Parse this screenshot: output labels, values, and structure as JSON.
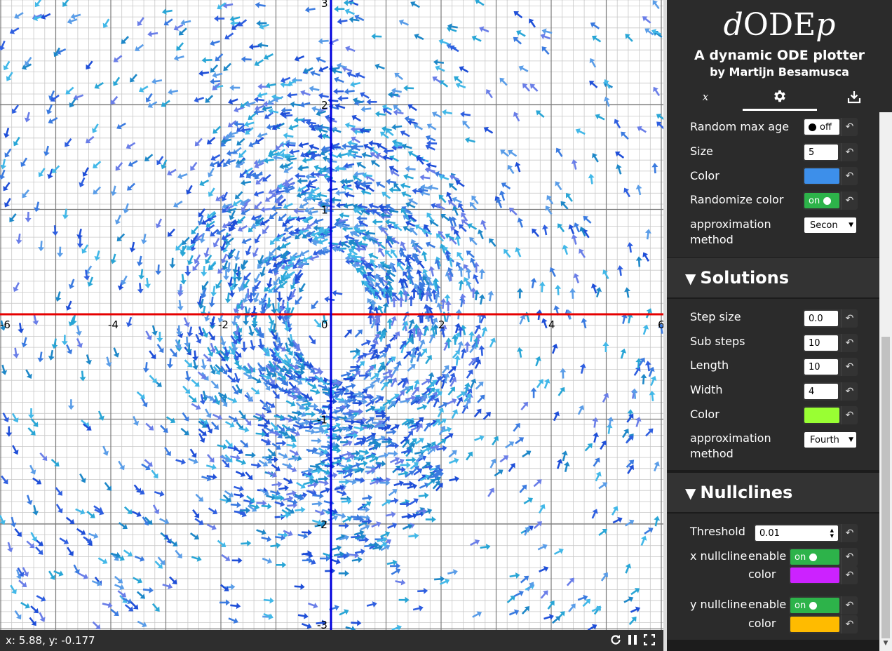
{
  "plot": {
    "x_ticks": [
      "-6",
      "-4",
      "-2",
      "0",
      "2",
      "4",
      "6"
    ],
    "y_ticks": [
      "3",
      "2",
      "1",
      "-1",
      "-2",
      "-3"
    ],
    "x_range": [
      -6,
      6
    ],
    "y_range": [
      -3,
      3
    ],
    "colors": {
      "x_axis": "#e60000",
      "y_axis": "#0000dd",
      "major_grid": "#7a7a7a",
      "minor_grid": "#c8c8c8"
    },
    "particle_colors": [
      "#1f4fd8",
      "#3b7be0",
      "#29a6d6",
      "#6a7ee8",
      "#42b8e8",
      "#2f5fe0",
      "#5a9de8",
      "#1e88c8"
    ]
  },
  "status": {
    "coords": "x: 5.88, y: -0.177",
    "icons": [
      "refresh-icon",
      "pause-icon",
      "fullscreen-icon"
    ]
  },
  "header": {
    "logo_d": "d",
    "logo_ode": "ODE",
    "logo_p": "p",
    "subtitle": "A dynamic ODE plotter",
    "author": "by Martijn Besamusca",
    "tabs": [
      {
        "icon": "function-icon",
        "glyph": "𝑥"
      },
      {
        "icon": "gear-icon"
      },
      {
        "icon": "download-icon"
      }
    ]
  },
  "particles": {
    "random_max_age": {
      "label": "Random max age",
      "value": "off"
    },
    "size": {
      "label": "Size",
      "value": "5"
    },
    "color": {
      "label": "Color",
      "value": "#3d8fea"
    },
    "randomize_color": {
      "label": "Randomize color",
      "value": "on"
    },
    "method": {
      "label1": "approximation",
      "label2": "method",
      "value": "Secon"
    }
  },
  "solutions": {
    "title": "Solutions",
    "step_size": {
      "label": "Step size",
      "value": "0.0"
    },
    "sub_steps": {
      "label": "Sub steps",
      "value": "10"
    },
    "length": {
      "label": "Length",
      "value": "10"
    },
    "width": {
      "label": "Width",
      "value": "4"
    },
    "color": {
      "label": "Color",
      "value": "#99ff33"
    },
    "method": {
      "label1": "approximation",
      "label2": "method",
      "value": "Fourth"
    }
  },
  "nullclines": {
    "title": "Nullclines",
    "threshold": {
      "label": "Threshold",
      "value": "0.01"
    },
    "x": {
      "label": "x nullcline",
      "enable_label": "enable",
      "enable": "on",
      "color_label": "color",
      "color": "#cc22ff"
    },
    "y": {
      "label": "y nullcline",
      "enable_label": "enable",
      "enable": "on",
      "color_label": "color",
      "color": "#ffbb00"
    }
  }
}
